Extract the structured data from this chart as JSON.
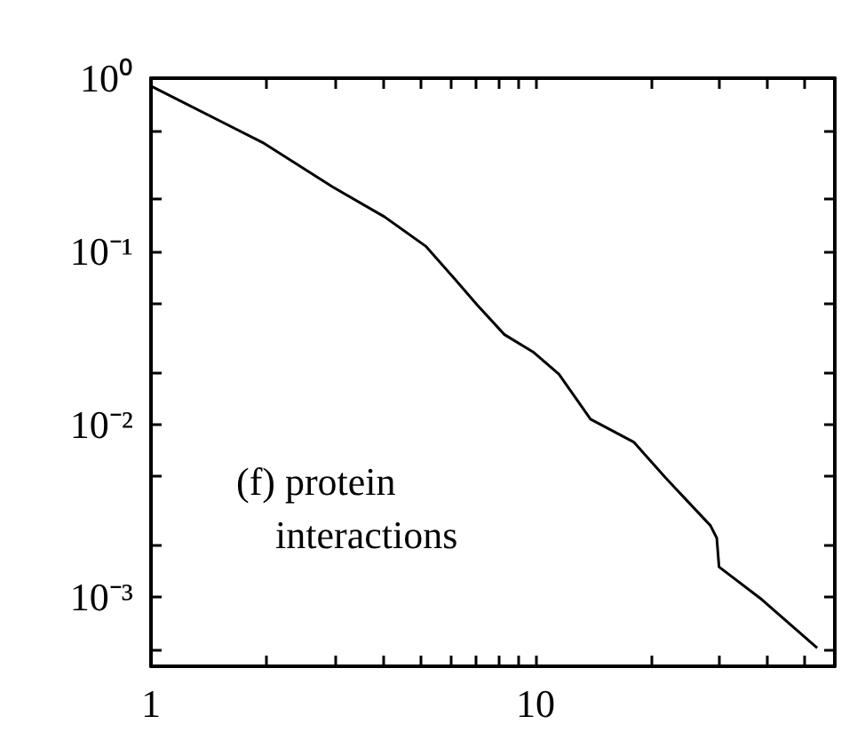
{
  "chart_data": {
    "type": "line",
    "log": "xy",
    "grid": false,
    "marker": "none",
    "line_style": "solid",
    "xlim": [
      1,
      60
    ],
    "ylim": [
      0.0004,
      1
    ],
    "xticks": [
      1,
      {
        "value": 2,
        "label": null
      },
      {
        "value": 3,
        "label": null
      },
      {
        "value": 4,
        "label": null
      },
      {
        "value": 5,
        "label": null
      },
      {
        "value": 6,
        "label": null
      },
      {
        "value": 7,
        "label": null
      },
      {
        "value": 8,
        "label": null
      },
      {
        "value": 9,
        "label": null
      },
      10,
      {
        "value": 20,
        "label": null
      },
      {
        "value": 30,
        "label": null
      },
      {
        "value": 40,
        "label": null
      },
      {
        "value": 50,
        "label": null
      },
      {
        "value": 60,
        "label": null
      }
    ],
    "yticks": [
      {
        "value": 0.0005,
        "label": null
      },
      {
        "value": 0.001,
        "label": "10⁻³"
      },
      {
        "value": 0.002,
        "label": null
      },
      {
        "value": 0.005,
        "label": null
      },
      {
        "value": 0.01,
        "label": "10⁻²"
      },
      {
        "value": 0.02,
        "label": null
      },
      {
        "value": 0.05,
        "label": null
      },
      {
        "value": 0.1,
        "label": "10⁻¹"
      },
      {
        "value": 0.2,
        "label": null
      },
      {
        "value": 0.5,
        "label": null
      },
      {
        "value": 1,
        "label": "10⁰"
      }
    ],
    "annotations": [
      "(f) protein\ninteractions"
    ],
    "series": [
      {
        "color": "#000000",
        "x": [
          1,
          1.97,
          2.97,
          4.05,
          5.18,
          6.1,
          7.05,
          8.3,
          9.9,
          11.5,
          13.9,
          18,
          21.8,
          28.5,
          29.6,
          30,
          38.8,
          54
        ],
        "values": [
          0.9,
          0.42,
          0.235,
          0.158,
          0.107,
          0.071,
          0.049,
          0.033,
          0.026,
          0.0195,
          0.0107,
          0.0079,
          0.0049,
          0.0026,
          0.0022,
          0.0015,
          0.00097,
          0.00051
        ]
      }
    ]
  }
}
